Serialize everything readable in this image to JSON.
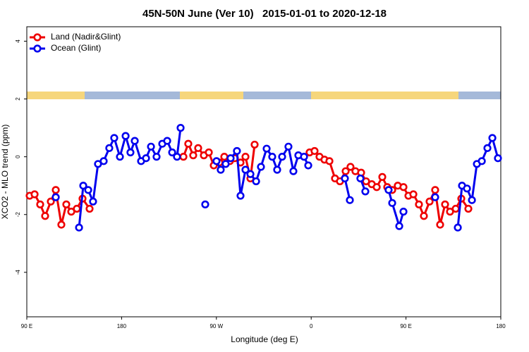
{
  "chart_data": {
    "type": "line",
    "title": "45N-50N June (Ver 10)   2015-01-01 to 2020-12-18",
    "xlabel": "Longitude (deg E)",
    "ylabel": "XCO2 - MLO trend (ppm)",
    "xlim": [
      90,
      540
    ],
    "xticks": [
      {
        "value": 90,
        "label": "90 E"
      },
      180,
      {
        "value": 270,
        "label": "90 W"
      },
      {
        "value": 360,
        "label": "0"
      },
      {
        "value": 450,
        "label": "90 E"
      },
      {
        "value": 540,
        "label": "180"
      }
    ],
    "ylim": [
      -5.54,
      4.5
    ],
    "yticks": [
      -4,
      -2,
      0,
      2,
      4
    ],
    "legend": "top-left",
    "series": [
      {
        "name": "Land (Nadir&Glint)",
        "color": "#ee0000",
        "x": [
          92.7,
          97.4,
          102.7,
          107.4,
          112.8,
          117.5,
          122.8,
          127.5,
          132.2,
          137.5,
          142.9,
          149.6,
          null,
          238.7,
          243.3,
          248,
          252.7,
          258.1,
          262.8,
          267.5,
          272.8,
          277.5,
          282.8,
          287.5,
          292.9,
          297.6,
          302.3,
          306.3,
          null,
          358.5,
          363.2,
          367.9,
          372.6,
          377.3,
          382.6,
          387.3,
          392.7,
          397.3,
          402,
          407.4,
          412.1,
          417.5,
          422.2,
          427.5,
          432.2,
          436.9,
          442.2,
          447.6,
          452.3,
          457,
          462.3,
          467,
          472.4,
          477.7,
          482.4,
          487.1,
          491.8,
          497.2,
          502.5,
          509.2
        ],
        "values": [
          -1.35,
          -1.3,
          -1.65,
          -2.05,
          -1.55,
          -1.15,
          -2.35,
          -1.65,
          -1.9,
          -1.8,
          -1.45,
          -1.8,
          null,
          0,
          0.45,
          0.05,
          0.3,
          0.05,
          0.15,
          -0.3,
          -0.2,
          0,
          -0.15,
          -0.05,
          -0.2,
          0,
          -0.75,
          0.42,
          null,
          0.15,
          0.2,
          0,
          -0.1,
          -0.15,
          -0.75,
          -0.85,
          -0.5,
          -0.35,
          -0.5,
          -0.55,
          -0.85,
          -0.95,
          -1.05,
          -0.7,
          -1.05,
          -1.15,
          -1.0,
          -1.05,
          -1.35,
          -1.3,
          -1.65,
          -2.05,
          -1.55,
          -1.15,
          -2.35,
          -1.65,
          -1.9,
          -1.8,
          -1.45,
          -1.8
        ]
      },
      {
        "name": "Ocean (Glint)",
        "color": "#0000ee",
        "x": [
          117.5,
          null,
          139.6,
          143.6,
          148.3,
          152.9,
          157.6,
          163,
          168.3,
          173,
          178.4,
          183.8,
          188.4,
          192.5,
          198.5,
          203.2,
          207.9,
          213.2,
          218.6,
          223.3,
          228,
          232.6,
          236,
          null,
          259.4,
          null,
          270.1,
          274.1,
          278.8,
          283.5,
          289.5,
          292.9,
          297.6,
          302.3,
          307.7,
          312.3,
          317.7,
          323,
          327.7,
          332.4,
          338.4,
          343.1,
          347.8,
          353.2,
          357.2,
          null,
          392,
          396.7,
          null,
          406.7,
          411.4,
          null,
          433.5,
          436.9,
          443.6,
          447.6,
          null,
          477.7,
          null,
          499.2,
          503.2,
          507.9,
          512.6,
          517.3,
          522,
          527.3,
          532,
          537.3
        ],
        "values": [
          -1.4,
          null,
          -2.45,
          -1.0,
          -1.15,
          -1.55,
          -0.25,
          -0.15,
          0.3,
          0.65,
          0,
          0.72,
          0.15,
          0.55,
          -0.15,
          -0.05,
          0.35,
          0,
          0.45,
          0.55,
          0.15,
          0,
          1.0,
          null,
          -1.65,
          null,
          -0.15,
          -0.45,
          -0.25,
          -0.05,
          0.2,
          -1.35,
          -0.45,
          -0.6,
          -0.85,
          -0.35,
          0.28,
          0,
          -0.45,
          0,
          0.35,
          -0.5,
          0.05,
          0,
          -0.3,
          null,
          -0.75,
          -1.5,
          null,
          -0.75,
          -1.2,
          null,
          -1.15,
          -1.6,
          -2.4,
          -1.9,
          null,
          -1.4,
          null,
          -2.45,
          -1.0,
          -1.1,
          -1.5,
          -0.25,
          -0.15,
          0.3,
          0.65,
          -0.05
        ]
      }
    ]
  }
}
